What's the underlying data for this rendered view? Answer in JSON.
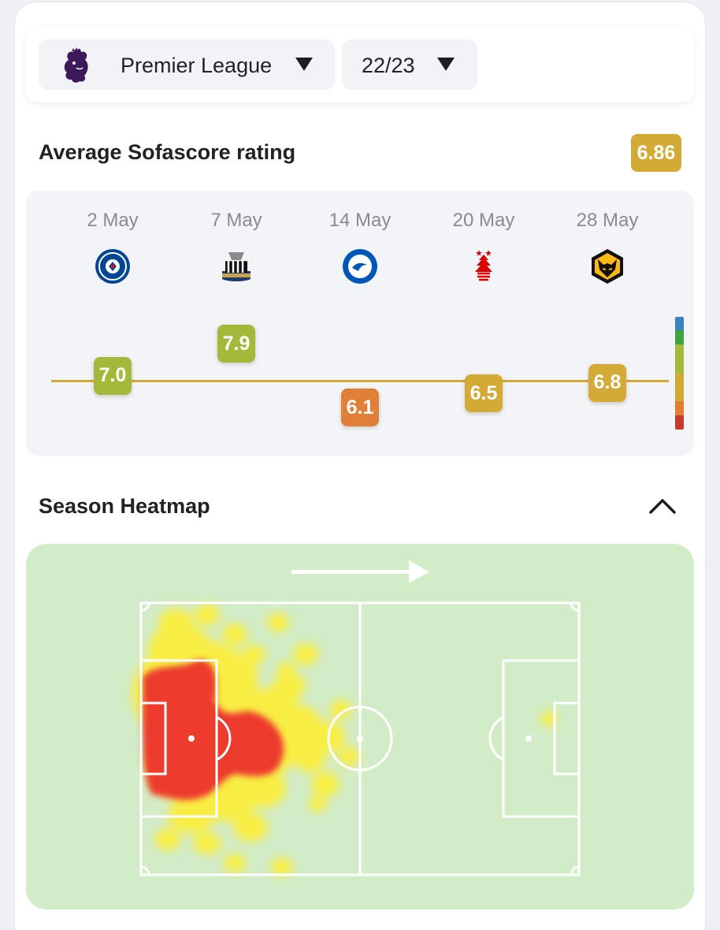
{
  "filters": {
    "league": {
      "label": "Premier League",
      "logo_icon": "premier-league-lion-icon"
    },
    "season": {
      "label": "22/23"
    }
  },
  "rating": {
    "title": "Average Sofascore rating",
    "average": "6.86",
    "average_value": 6.86,
    "matches": [
      {
        "date": "2 May",
        "opponent_icon": "chelsea-crest-icon",
        "rating": "7.0",
        "value": 7.0
      },
      {
        "date": "7 May",
        "opponent_icon": "newcastle-crest-icon",
        "rating": "7.9",
        "value": 7.9
      },
      {
        "date": "14 May",
        "opponent_icon": "brighton-crest-icon",
        "rating": "6.1",
        "value": 6.1
      },
      {
        "date": "20 May",
        "opponent_icon": "nottingham-forest-crest-icon",
        "rating": "6.5",
        "value": 6.5
      },
      {
        "date": "28 May",
        "opponent_icon": "wolves-crest-icon",
        "rating": "6.8",
        "value": 6.8
      }
    ]
  },
  "heatmap": {
    "title": "Season Heatmap",
    "direction_icon": "attack-direction-arrow-icon",
    "collapse_icon": "chevron-up-icon"
  },
  "colors": {
    "rating_green": "#a4b83a",
    "rating_yellow": "#d3aa35",
    "rating_orange": "#e07f35",
    "heat_red": "#ed3a2d",
    "heat_yellow": "#fbee3a",
    "pitch_bg": "#d2ecc8",
    "scale": [
      "#3c7fc2",
      "#3fa33e",
      "#a4b83a",
      "#d3aa35",
      "#e07f35",
      "#c53a2a"
    ]
  }
}
